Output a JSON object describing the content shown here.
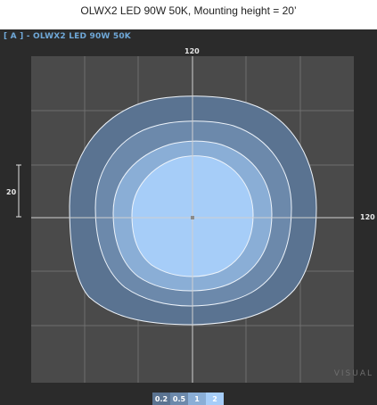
{
  "caption": "OLWX2 LED 90W 50K, Mounting height = 20’",
  "view_label": "[ A ] - OLWX2 LED 90W 50K",
  "scale_top": "120",
  "scale_right": "120",
  "scale_left": "20",
  "watermark": "VISUAL",
  "legend": [
    {
      "label": "0.2",
      "color": "#5a7391"
    },
    {
      "label": "0.5",
      "color": "#6c89ab"
    },
    {
      "label": "1",
      "color": "#8aaed6"
    },
    {
      "label": "2",
      "color": "#a6cdf8"
    }
  ],
  "colors": {
    "background": "#2b2b2b",
    "plot_area": "#4a4a4a",
    "grid": "#7a7a7a",
    "axis": "#d0d0d0",
    "contour_stroke": "#eef4fb"
  }
}
